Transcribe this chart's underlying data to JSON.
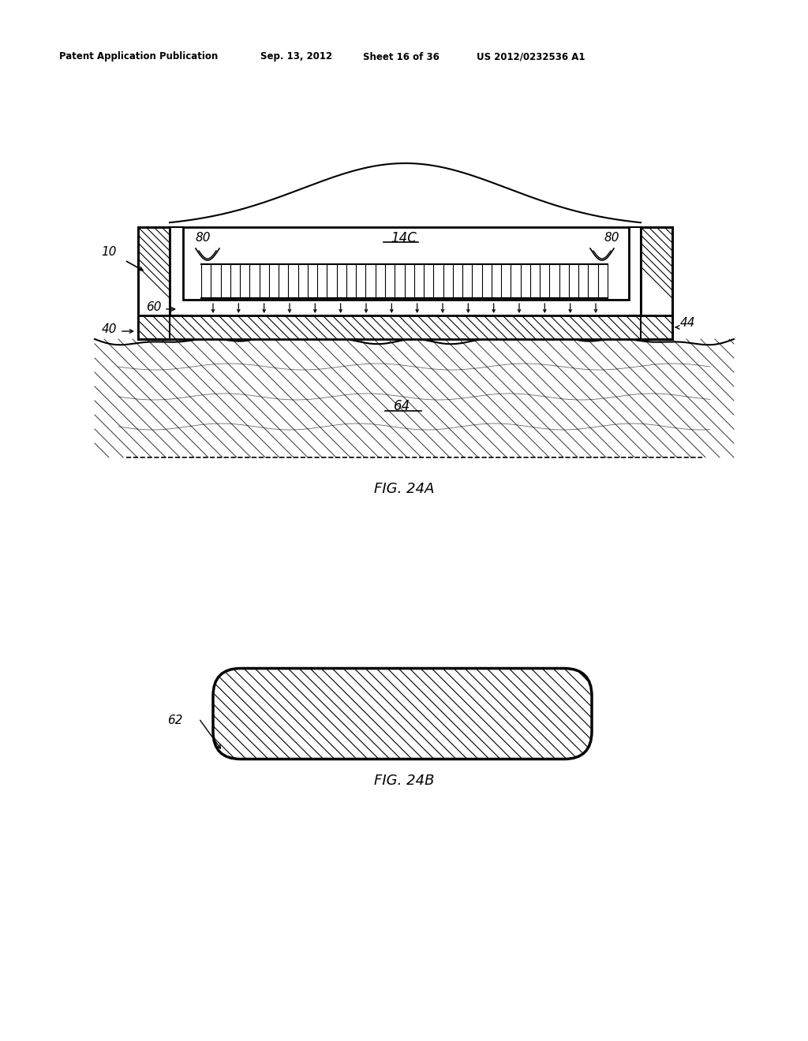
{
  "bg_color": "#ffffff",
  "header_text": "Patent Application Publication",
  "header_date": "Sep. 13, 2012",
  "header_sheet": "Sheet 16 of 36",
  "header_patent": "US 2012/0232536 A1",
  "fig24a_label": "FIG. 24A",
  "fig24b_label": "FIG. 24B",
  "label_10": "10",
  "label_14c": "14C",
  "label_40": "40",
  "label_44": "44",
  "label_60": "60",
  "label_62": "62",
  "label_64": "64",
  "label_80_left": "80",
  "label_80_right": "80"
}
